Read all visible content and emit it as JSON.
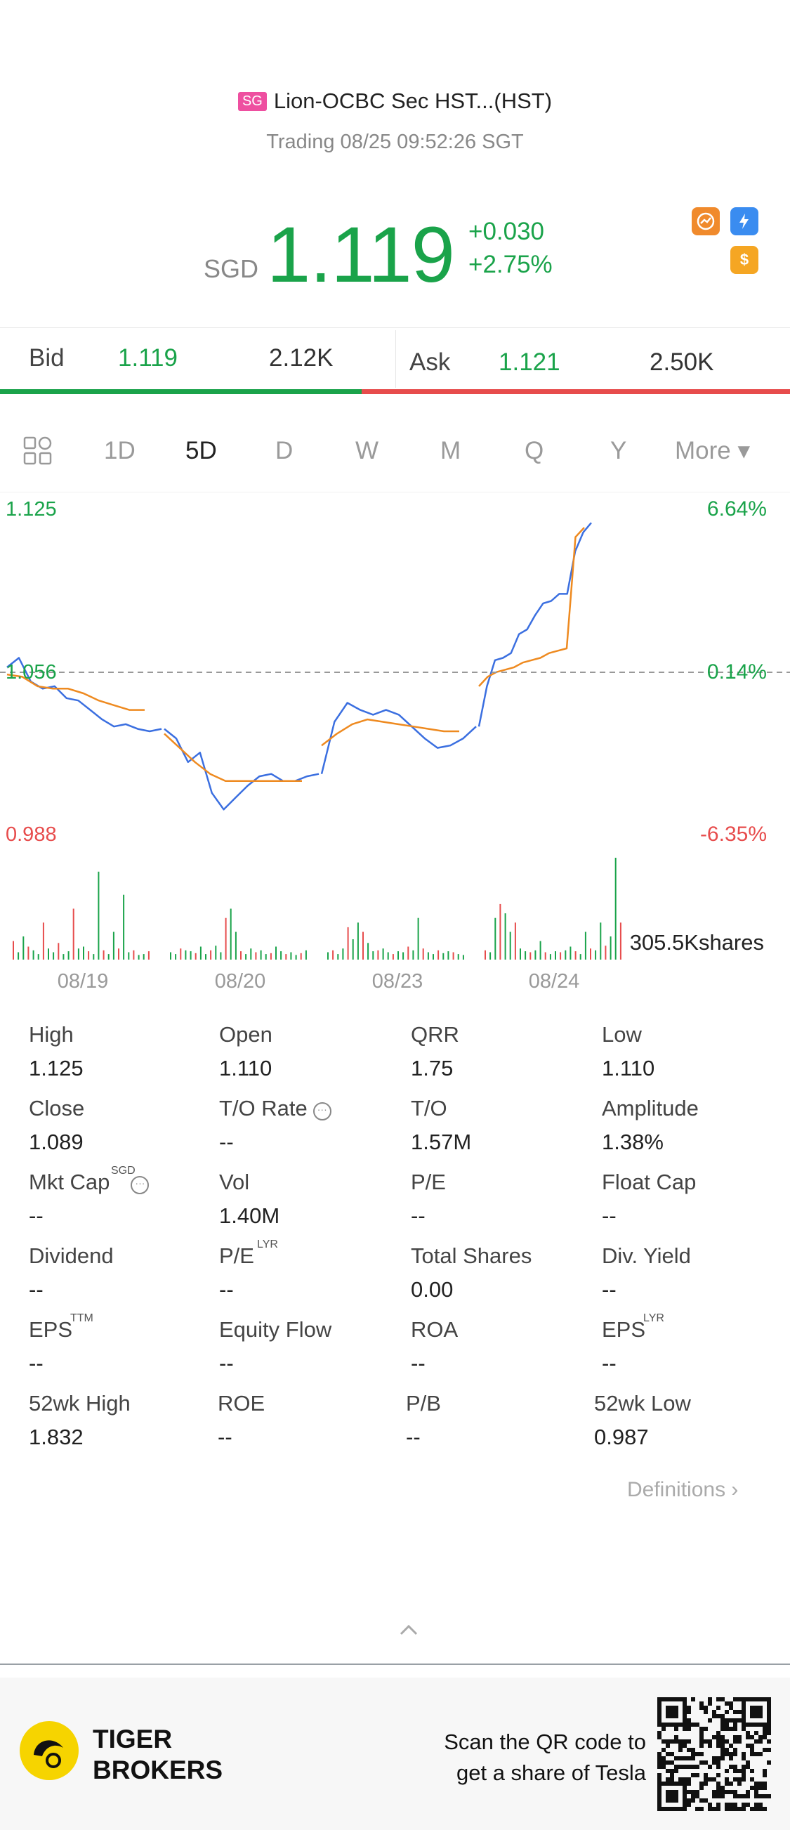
{
  "header": {
    "market_badge": "SG",
    "title": "Lion-OCBC Sec HST...(HST)",
    "subtitle": "Trading 08/25 09:52:26 SGT"
  },
  "quote": {
    "currency": "SGD",
    "price": "1.119",
    "change": "+0.030",
    "change_pct": "+2.75%",
    "badge_1_icon": "chart-swap-icon",
    "badge_2_icon": "lightning-icon",
    "badge_3_label": "$",
    "price_color": "#1aa34a"
  },
  "bid_ask": {
    "bid_label": "Bid",
    "bid_price": "1.119",
    "bid_size": "2.12K",
    "ask_label": "Ask",
    "ask_price": "1.121",
    "ask_size": "2.50K",
    "bid_share": 0.457
  },
  "tabs": {
    "grid_icon": "grid-icon",
    "items": [
      "1D",
      "5D",
      "D",
      "W",
      "M",
      "Q",
      "Y"
    ],
    "active": "5D",
    "more_label": "More ▾"
  },
  "chart_data": {
    "type": "line",
    "y_left_ticks": [
      "1.125",
      "1.056",
      "0.988"
    ],
    "y_right_ticks": [
      "6.64%",
      "0.14%",
      "-6.35%"
    ],
    "x_labels": [
      "08/19",
      "08/20",
      "08/23",
      "08/24"
    ],
    "ylim": [
      0.988,
      1.125
    ],
    "reference_price": 1.056,
    "volume_label": "305.5Kshares",
    "series": [
      {
        "color": "#3b6fe0",
        "days": [
          [
            1.058,
            1.062,
            1.052,
            1.049,
            1.05,
            1.045,
            1.044,
            1.04,
            1.036,
            1.033,
            1.034,
            1.032,
            1.031,
            1.032
          ],
          [
            1.032,
            1.028,
            1.018,
            1.022,
            1.005,
            0.998,
            1.003,
            1.008,
            1.012,
            1.013,
            1.01,
            1.01,
            1.012,
            1.013
          ],
          [
            1.013,
            1.035,
            1.043,
            1.04,
            1.038,
            1.04,
            1.038,
            1.033,
            1.028,
            1.024,
            1.025,
            1.028,
            1.033
          ],
          [
            1.033,
            1.05,
            1.061,
            1.062,
            1.064,
            1.072,
            1.074,
            1.08,
            1.085,
            1.086,
            1.089,
            1.089,
            1.107,
            1.115,
            1.119
          ]
        ]
      },
      {
        "color": "#ee8a20",
        "days": [
          [
            1.055,
            1.054,
            1.05,
            1.049,
            1.049,
            1.047,
            1.044,
            1.042,
            1.04,
            1.04
          ],
          [
            1.03,
            1.024,
            1.018,
            1.013,
            1.01,
            1.01,
            1.01,
            1.01,
            1.01,
            1.01
          ],
          [
            1.025,
            1.03,
            1.034,
            1.036,
            1.035,
            1.034,
            1.033,
            1.032,
            1.031,
            1.031
          ],
          [
            1.05,
            1.054,
            1.056,
            1.057,
            1.058,
            1.06,
            1.061,
            1.062,
            1.064,
            1.065,
            1.066,
            1.113,
            1.117
          ]
        ]
      }
    ],
    "volume": [
      [
        20,
        8,
        25,
        14,
        10,
        6,
        40,
        12,
        8,
        18,
        6,
        9,
        55,
        12,
        14,
        9,
        6,
        95,
        10,
        6,
        30,
        12,
        70,
        8,
        10,
        5,
        6,
        9
      ],
      [
        8,
        6,
        12,
        10,
        9,
        7,
        14,
        6,
        10,
        15,
        8,
        45,
        55,
        30,
        9,
        6,
        12,
        8,
        10,
        6,
        7,
        14,
        9,
        6,
        8,
        5,
        7,
        10
      ],
      [
        8,
        10,
        6,
        12,
        35,
        22,
        40,
        30,
        18,
        9,
        10,
        12,
        8,
        6,
        9,
        8,
        14,
        10,
        45,
        12,
        8,
        6,
        10,
        7,
        9,
        8,
        6,
        5
      ],
      [
        10,
        8,
        45,
        60,
        50,
        30,
        40,
        12,
        9,
        8,
        10,
        20,
        8,
        6,
        9,
        8,
        10,
        14,
        9,
        6,
        30,
        12,
        10,
        40,
        15,
        25,
        110,
        40
      ]
    ]
  },
  "stats": {
    "rows": [
      [
        [
          "High",
          "1.125"
        ],
        [
          "Open",
          "1.110"
        ],
        [
          "QRR",
          "1.75"
        ],
        [
          "Low",
          "1.110"
        ]
      ],
      [
        [
          "Close",
          "1.089"
        ],
        [
          "T/O Rate",
          "--"
        ],
        [
          "T/O",
          "1.57M"
        ],
        [
          "Amplitude",
          "1.38%"
        ]
      ],
      [
        [
          "Mkt Cap",
          "--"
        ],
        [
          "Vol",
          "1.40M"
        ],
        [
          "P/E",
          "--"
        ],
        [
          "Float Cap",
          "--"
        ]
      ],
      [
        [
          "Dividend",
          "--"
        ],
        [
          "P/E",
          "--"
        ],
        [
          "Total Shares",
          "0.00"
        ],
        [
          "Div. Yield",
          "--"
        ]
      ],
      [
        [
          "EPS",
          "--"
        ],
        [
          "Equity Flow",
          "--"
        ],
        [
          "ROA",
          "--"
        ],
        [
          "EPS",
          "--"
        ]
      ],
      [
        [
          "52wk High",
          "1.832"
        ],
        [
          "ROE",
          "--"
        ],
        [
          "P/B",
          "--"
        ],
        [
          "52wk Low",
          "0.987"
        ]
      ]
    ],
    "sup_mktcap": "SGD",
    "sup_pe": "LYR",
    "sup_eps_ttm": "TTM",
    "sup_eps_lyr": "LYR",
    "definitions_label": "Definitions"
  },
  "footer": {
    "brand_line1": "TIGER",
    "brand_line2": "BROKERS",
    "scan_line1": "Scan the QR code to",
    "scan_line2": "get a share of Tesla"
  }
}
